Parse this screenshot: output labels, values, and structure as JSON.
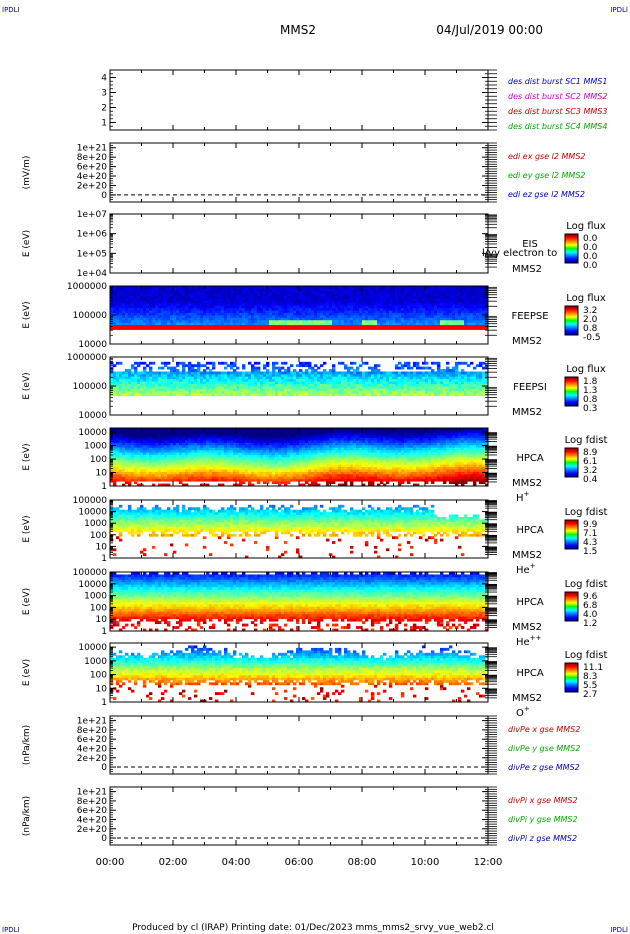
{
  "header": {
    "corner_left": "IPDLI",
    "corner_right": "IPDLI",
    "spacecraft": "MMS2",
    "datetime": "04/Jul/2019 00:00"
  },
  "footer": {
    "text": "Produced by cl (IRAP)   Printing date: 01/Dec/2023   mms_mms2_srvy_vue_web2.cl",
    "corner_left": "IPDLI",
    "corner_right": "IPDLI"
  },
  "chart_data": {
    "type": "heatmap",
    "x_axis": {
      "range": [
        "00:00",
        "12:00"
      ],
      "ticks": [
        "00:00",
        "02:00",
        "04:00",
        "06:00",
        "08:00",
        "10:00",
        "12:00"
      ]
    },
    "panels": [
      {
        "id": "burst",
        "kind": "line",
        "ylabel": "",
        "yticks": [
          "4",
          "3",
          "2",
          "1"
        ],
        "ytick_values": [
          4,
          3,
          2,
          1
        ],
        "ylim": [
          0.5,
          4.5
        ],
        "series": [
          {
            "name": "des dist burst SC1 MMS1",
            "color": "#0000cc"
          },
          {
            "name": "des dist burst SC2 MMS2",
            "color": "#cc00cc"
          },
          {
            "name": "des dist burst SC3 MMS3",
            "color": "#cc0000"
          },
          {
            "name": "des dist burst SC4 MMS4",
            "color": "#00aa00"
          }
        ]
      },
      {
        "id": "edi",
        "kind": "line",
        "ylabel": "(mV/m)",
        "yticks": [
          "1e+21",
          "8e+20",
          "6e+20",
          "4e+20",
          "2e+20",
          "0"
        ],
        "ytick_values": [
          1e+21,
          8e+20,
          6e+20,
          4e+20,
          2e+20,
          0
        ],
        "ylim": [
          -1.5e+20,
          1.1e+21
        ],
        "zero_line": true,
        "series": [
          {
            "name": "edi ex gse l2 MMS2",
            "color": "#cc0000"
          },
          {
            "name": "edi ey gse l2 MMS2",
            "color": "#00aa00"
          },
          {
            "name": "edi ez gse l2 MMS2",
            "color": "#0000cc"
          }
        ]
      },
      {
        "id": "eis",
        "kind": "spectrogram",
        "ylabel": "E (eV)",
        "yticks": [
          "1e+07",
          "1e+06",
          "1e+05",
          "1e+04"
        ],
        "ytick_values": [
          7,
          6,
          5,
          4
        ],
        "log": true,
        "ylim": [
          4,
          7
        ],
        "instrument": "EIS",
        "instrument_extra": "l/vy electron to",
        "spacecraft": "MMS2",
        "colorbar": {
          "title": "Log flux",
          "labels": [
            "0.0",
            "0.0",
            "0.0",
            "0.0"
          ]
        },
        "fill": "empty"
      },
      {
        "id": "feepse",
        "kind": "spectrogram",
        "ylabel": "E (eV)",
        "yticks": [
          "1000000",
          "100000",
          "10000"
        ],
        "ytick_values": [
          6,
          5,
          4
        ],
        "log": true,
        "ylim": [
          4,
          6
        ],
        "instrument": "FEEPSE",
        "spacecraft": "MMS2",
        "colorbar": {
          "title": "Log flux",
          "labels": [
            "3.2",
            "2.0",
            "0.8",
            "-0.5"
          ]
        },
        "fill": "feepse"
      },
      {
        "id": "feepsi",
        "kind": "spectrogram",
        "ylabel": "E (eV)",
        "yticks": [
          "1000000",
          "100000",
          "10000"
        ],
        "ytick_values": [
          6,
          5,
          4
        ],
        "log": true,
        "ylim": [
          4,
          6
        ],
        "instrument": "FEEPSI",
        "spacecraft": "MMS2",
        "colorbar": {
          "title": "Log flux",
          "labels": [
            "1.8",
            "1.3",
            "0.8",
            "0.3"
          ]
        },
        "fill": "feepsi"
      },
      {
        "id": "hpca_h",
        "kind": "spectrogram",
        "ylabel": "E (eV)",
        "yticks": [
          "10000",
          "1000",
          "100",
          "10",
          "1"
        ],
        "ytick_values": [
          4,
          3,
          2,
          1,
          0
        ],
        "log": true,
        "ylim": [
          0,
          4.3
        ],
        "instrument": "HPCA",
        "spacecraft": "MMS2",
        "species": "H",
        "species_sup": "+",
        "colorbar": {
          "title": "Log fdist",
          "labels": [
            "8.9",
            "6.1",
            "3.2",
            "0.4"
          ]
        },
        "fill": "hpca_h"
      },
      {
        "id": "hpca_he",
        "kind": "spectrogram",
        "ylabel": "E (eV)",
        "yticks": [
          "100000",
          "10000",
          "1000",
          "100",
          "10",
          "1"
        ],
        "ytick_values": [
          5,
          4,
          3,
          2,
          1,
          0
        ],
        "log": true,
        "ylim": [
          0,
          5
        ],
        "instrument": "HPCA",
        "spacecraft": "MMS2",
        "species": "He",
        "species_sup": "+",
        "colorbar": {
          "title": "Log fdist",
          "labels": [
            "9.9",
            "7.1",
            "4.3",
            "1.5"
          ]
        },
        "fill": "hpca_he"
      },
      {
        "id": "hpca_he2",
        "kind": "spectrogram",
        "ylabel": "E (eV)",
        "yticks": [
          "100000",
          "10000",
          "1000",
          "100",
          "10",
          "1"
        ],
        "ytick_values": [
          5,
          4,
          3,
          2,
          1,
          0
        ],
        "log": true,
        "ylim": [
          0,
          5
        ],
        "instrument": "HPCA",
        "spacecraft": "MMS2",
        "species": "He",
        "species_sup": "++",
        "colorbar": {
          "title": "Log fdist",
          "labels": [
            "9.6",
            "6.8",
            "4.0",
            "1.2"
          ]
        },
        "fill": "hpca_he2"
      },
      {
        "id": "hpca_o",
        "kind": "spectrogram",
        "ylabel": "E (eV)",
        "yticks": [
          "10000",
          "1000",
          "100",
          "10",
          "1"
        ],
        "ytick_values": [
          4,
          3,
          2,
          1,
          0
        ],
        "log": true,
        "ylim": [
          0,
          4.3
        ],
        "instrument": "HPCA",
        "spacecraft": "MMS2",
        "species": "O",
        "species_sup": "+",
        "colorbar": {
          "title": "Log fdist",
          "labels": [
            "11.1",
            "8.3",
            "5.5",
            "2.7"
          ]
        },
        "fill": "hpca_o"
      },
      {
        "id": "divpe",
        "kind": "line",
        "ylabel": "(nPa/km)",
        "yticks": [
          "1e+21",
          "8e+20",
          "6e+20",
          "4e+20",
          "2e+20",
          "0"
        ],
        "ytick_values": [
          1e+21,
          8e+20,
          6e+20,
          4e+20,
          2e+20,
          0
        ],
        "ylim": [
          -1.5e+20,
          1.1e+21
        ],
        "zero_line": true,
        "series": [
          {
            "name": "divPe x gse MMS2",
            "color": "#cc0000"
          },
          {
            "name": "divPe y gse MMS2",
            "color": "#00aa00"
          },
          {
            "name": "divPe z gse MMS2",
            "color": "#0000cc"
          }
        ]
      },
      {
        "id": "divpi",
        "kind": "line",
        "ylabel": "(nPa/km)",
        "yticks": [
          "1e+21",
          "8e+20",
          "6e+20",
          "4e+20",
          "2e+20",
          "0"
        ],
        "ytick_values": [
          1e+21,
          8e+20,
          6e+20,
          4e+20,
          2e+20,
          0
        ],
        "ylim": [
          -1.5e+20,
          1.1e+21
        ],
        "zero_line": true,
        "series": [
          {
            "name": "divPi x gse MMS2",
            "color": "#cc0000"
          },
          {
            "name": "divPi y gse MMS2",
            "color": "#00aa00"
          },
          {
            "name": "divPi z gse MMS2",
            "color": "#0000cc"
          }
        ]
      }
    ]
  }
}
